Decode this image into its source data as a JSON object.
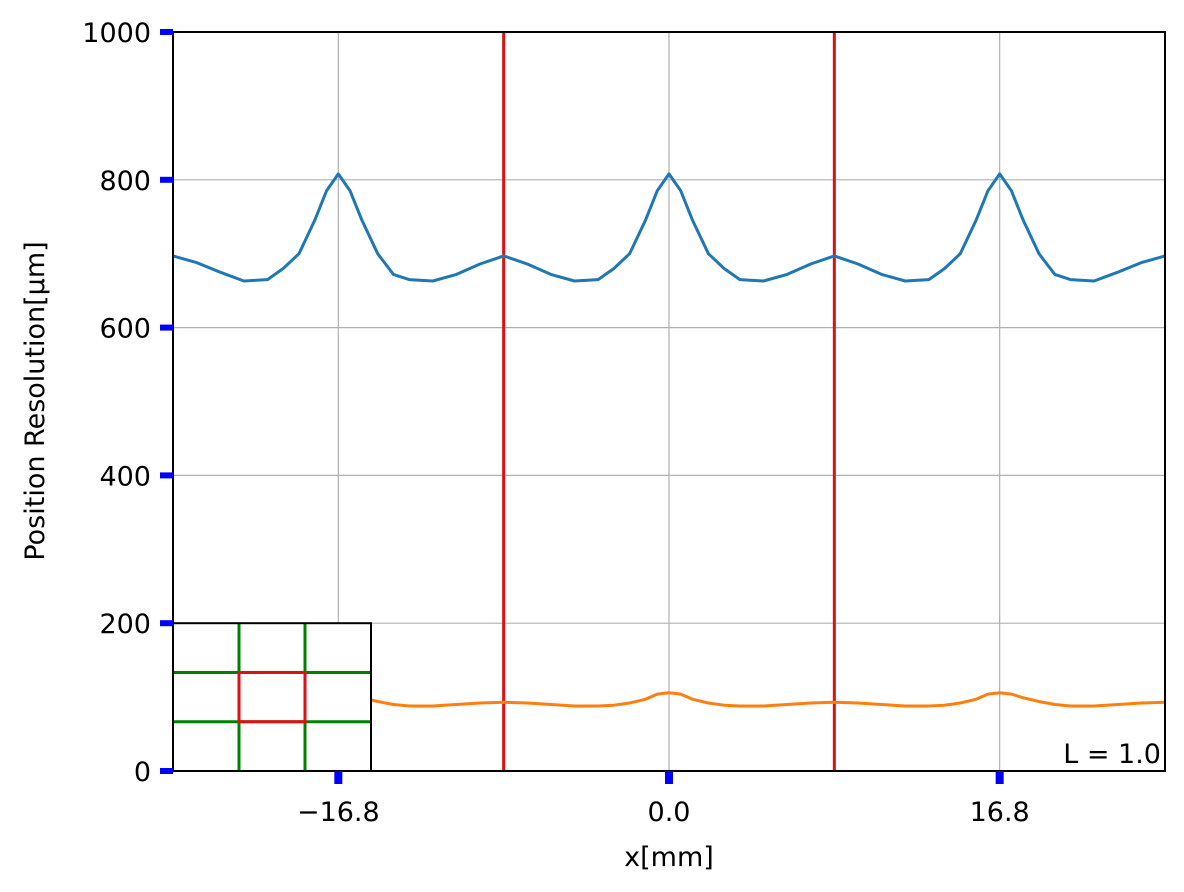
{
  "chart_data": {
    "type": "line",
    "title": "",
    "xlabel": "x[mm]",
    "ylabel": "Position Resolution[µm]",
    "xlim": [
      -25.2,
      25.2
    ],
    "ylim": [
      0,
      1000
    ],
    "xticks": [
      -16.8,
      0.0,
      16.8
    ],
    "xtick_labels": [
      "−16.8",
      "0.0",
      "16.8"
    ],
    "yticks": [
      0,
      200,
      400,
      600,
      800,
      1000
    ],
    "ytick_labels": [
      "0",
      "200",
      "400",
      "600",
      "800",
      "1000"
    ],
    "grid": true,
    "legend": "none",
    "annotation": "L = 1.0",
    "vertical_lines": {
      "x": [
        -8.4,
        8.4
      ],
      "color": "#dd1111"
    },
    "series": [
      {
        "color": "#1f77b4",
        "x": [
          -25.2,
          -24.0,
          -22.8,
          -21.6,
          -20.4,
          -19.6,
          -18.8,
          -18.0,
          -17.4,
          -16.8,
          -16.2,
          -15.6,
          -14.8,
          -14.0,
          -13.2,
          -12.0,
          -10.8,
          -9.6,
          -8.4,
          -7.2,
          -6.0,
          -4.8,
          -3.6,
          -2.8,
          -2.0,
          -1.2,
          -0.6,
          0.0,
          0.6,
          1.2,
          2.0,
          2.8,
          3.6,
          4.8,
          6.0,
          7.2,
          8.4,
          9.6,
          10.8,
          12.0,
          13.2,
          14.0,
          14.8,
          15.6,
          16.2,
          16.8,
          17.4,
          18.0,
          18.8,
          19.6,
          20.4,
          21.6,
          22.8,
          24.0,
          25.2
        ],
        "y": [
          697,
          688,
          675,
          663,
          665,
          680,
          700,
          745,
          785,
          808,
          785,
          745,
          700,
          672,
          665,
          663,
          672,
          686,
          697,
          686,
          672,
          663,
          665,
          680,
          700,
          745,
          785,
          808,
          785,
          745,
          700,
          680,
          665,
          663,
          672,
          686,
          697,
          686,
          672,
          663,
          665,
          680,
          700,
          745,
          785,
          808,
          785,
          745,
          700,
          672,
          665,
          663,
          675,
          688,
          697
        ]
      },
      {
        "color": "#ff7f0e",
        "x": [
          -25.2,
          -24.0,
          -22.8,
          -21.6,
          -20.4,
          -19.6,
          -18.8,
          -18.0,
          -17.4,
          -16.8,
          -16.2,
          -15.6,
          -14.8,
          -14.0,
          -13.2,
          -12.0,
          -10.8,
          -9.6,
          -8.4,
          -7.2,
          -6.0,
          -4.8,
          -3.6,
          -2.8,
          -2.0,
          -1.2,
          -0.6,
          0.0,
          0.6,
          1.2,
          2.0,
          2.8,
          3.6,
          4.8,
          6.0,
          7.2,
          8.4,
          9.6,
          10.8,
          12.0,
          13.2,
          14.0,
          14.8,
          15.6,
          16.2,
          16.8,
          17.4,
          18.0,
          18.8,
          19.6,
          20.4,
          21.6,
          22.8,
          24.0,
          25.2
        ],
        "y": [
          93,
          92,
          90,
          88,
          89,
          91,
          94,
          99,
          104,
          106,
          104,
          99,
          94,
          90,
          88,
          88,
          90,
          92,
          93,
          92,
          90,
          88,
          88,
          89,
          92,
          97,
          104,
          106,
          104,
          97,
          92,
          89,
          88,
          88,
          90,
          92,
          93,
          92,
          90,
          88,
          88,
          89,
          92,
          97,
          104,
          106,
          104,
          99,
          94,
          90,
          88,
          88,
          90,
          92,
          93
        ]
      }
    ],
    "inset": {
      "grid_color": "#008000",
      "highlight_color": "#dd1111"
    }
  }
}
